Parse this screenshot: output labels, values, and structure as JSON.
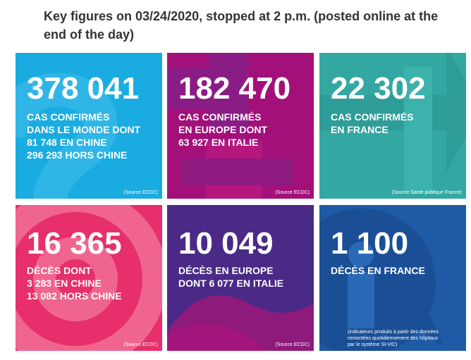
{
  "heading": "Key figures on 03/24/2020, stopped at 2 p.m. (posted online at the end of the day)",
  "colors": {
    "tile_world": "#1aace0",
    "tile_europe": "#a3107a",
    "tile_france": "#33a8a2",
    "tile_deaths_world": "#e83e72",
    "tile_deaths_europe": "#4a2a86",
    "tile_deaths_france": "#1f5aa6"
  },
  "tiles": [
    {
      "number": "378 041",
      "description": "CAS CONFIRMÉS\nDANS LE MONDE DONT\n81 748 EN CHINE\n296 293 HORS CHINE",
      "source": "(Source ECDC)",
      "icon": "question-mark-icon"
    },
    {
      "number": "182 470",
      "description": "CAS CONFIRMÉS\nEN EUROPE DONT\n63 927 EN ITALIE",
      "source": "(Source ECDC)",
      "icon": "plus-sign-icon"
    },
    {
      "number": "22 302",
      "description": "CAS CONFIRMÉS\nEN FRANCE",
      "source": "(Source Santé publique France)",
      "icon": "up-arrow-icon"
    },
    {
      "number": "16 365",
      "description": "DÉCÈS DONT\n3 283 EN CHINE\n13 082 HORS CHINE",
      "source": "(Source ECDC)",
      "icon": "target-circles-icon"
    },
    {
      "number": "10 049",
      "description": "DÉCÈS EN EUROPE\nDONT 6 077 EN ITALIE",
      "source": "(Source ECDC)",
      "icon": "wave-shape-icon"
    },
    {
      "number": "1 100",
      "description": "DÉCÈS EN FRANCE",
      "source": "(indicateurs produits à partir des données\nremontées quotidiennement des hôpitaux\npar le système SI-VIC)",
      "icon": "info-bubble-icon"
    }
  ]
}
